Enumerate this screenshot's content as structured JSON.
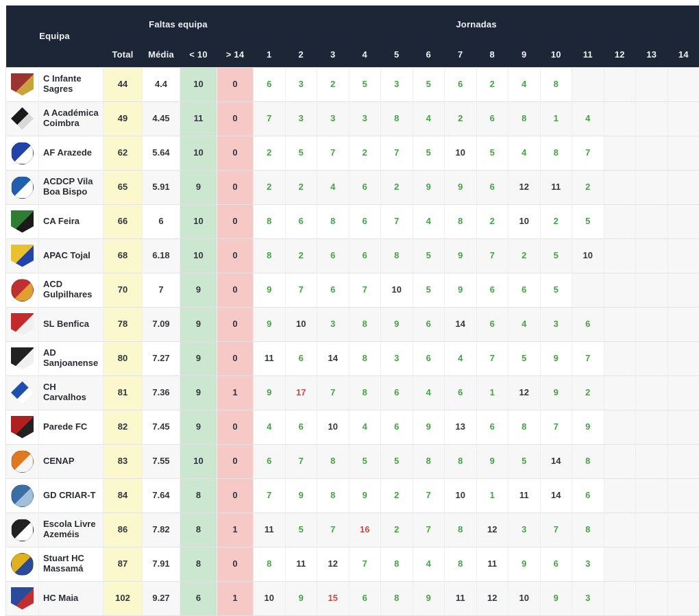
{
  "table": {
    "header": {
      "equipa": "Equipa",
      "faltas_group": "Faltas equipa",
      "jornadas_group": "Jornadas",
      "total": "Total",
      "media": "Média",
      "under": "< 10",
      "over": "> 14",
      "jornada_numbers": [
        "1",
        "2",
        "3",
        "4",
        "5",
        "6",
        "7",
        "8",
        "9",
        "10",
        "11",
        "12",
        "13",
        "14"
      ]
    },
    "colors": {
      "header_bg": "#1d2636",
      "total_col_bg": "#fbf8cd",
      "under_col_bg": "#cbe7cf",
      "over_col_bg": "#f6c9c7",
      "value_green": "#46a346",
      "value_dark": "#33363a",
      "value_red": "#cb4b47"
    },
    "rows": [
      {
        "team": "C Infante Sagres",
        "logo_shape": "shield",
        "logo_colors": [
          "#9c3434",
          "#c9a23a"
        ],
        "total": "44",
        "media": "4.4",
        "under10": "10",
        "over14": "0",
        "jornadas": [
          6,
          3,
          2,
          5,
          3,
          5,
          6,
          2,
          4,
          8,
          null,
          null,
          null,
          null
        ]
      },
      {
        "team": "A Académica Coimbra",
        "logo_shape": "diamond",
        "logo_colors": [
          "#1a1a1a",
          "#d8d8d8"
        ],
        "total": "49",
        "media": "4.45",
        "under10": "11",
        "over14": "0",
        "jornadas": [
          7,
          3,
          3,
          3,
          8,
          4,
          2,
          6,
          8,
          1,
          4,
          null,
          null,
          null
        ]
      },
      {
        "team": "AF Arazede",
        "logo_shape": "circle",
        "logo_colors": [
          "#2244aa",
          "#ffffff"
        ],
        "total": "62",
        "media": "5.64",
        "under10": "10",
        "over14": "0",
        "jornadas": [
          2,
          5,
          7,
          2,
          7,
          5,
          10,
          5,
          4,
          8,
          7,
          null,
          null,
          null
        ]
      },
      {
        "team": "ACDCP Vila Boa Bispo",
        "logo_shape": "circle",
        "logo_colors": [
          "#1f5fae",
          "#ffffff"
        ],
        "total": "65",
        "media": "5.91",
        "under10": "9",
        "over14": "0",
        "jornadas": [
          2,
          2,
          4,
          6,
          2,
          9,
          9,
          6,
          12,
          11,
          2,
          null,
          null,
          null
        ]
      },
      {
        "team": "CA Feira",
        "logo_shape": "shield",
        "logo_colors": [
          "#2e7d32",
          "#1a1a1a"
        ],
        "total": "66",
        "media": "6",
        "under10": "10",
        "over14": "0",
        "jornadas": [
          8,
          6,
          8,
          6,
          7,
          4,
          8,
          2,
          10,
          2,
          5,
          null,
          null,
          null
        ]
      },
      {
        "team": "APAC Tojal",
        "logo_shape": "shield",
        "logo_colors": [
          "#e8c030",
          "#2244aa"
        ],
        "total": "68",
        "media": "6.18",
        "under10": "10",
        "over14": "0",
        "jornadas": [
          8,
          2,
          6,
          6,
          8,
          5,
          9,
          7,
          2,
          5,
          10,
          null,
          null,
          null
        ]
      },
      {
        "team": "ACD Gulpilhares",
        "logo_shape": "circle",
        "logo_colors": [
          "#c03030",
          "#e0a030"
        ],
        "total": "70",
        "media": "7",
        "under10": "9",
        "over14": "0",
        "jornadas": [
          9,
          7,
          6,
          7,
          10,
          5,
          9,
          6,
          6,
          5,
          null,
          null,
          null,
          null
        ]
      },
      {
        "team": "SL Benfica",
        "logo_shape": "shield",
        "logo_colors": [
          "#c22b2b",
          "#f0f0f0"
        ],
        "total": "78",
        "media": "7.09",
        "under10": "9",
        "over14": "0",
        "jornadas": [
          9,
          10,
          3,
          8,
          9,
          6,
          14,
          6,
          4,
          3,
          6,
          null,
          null,
          null
        ]
      },
      {
        "team": "AD Sanjoanense",
        "logo_shape": "shield",
        "logo_colors": [
          "#222222",
          "#f0f0f0"
        ],
        "total": "80",
        "media": "7.27",
        "under10": "9",
        "over14": "0",
        "jornadas": [
          11,
          6,
          14,
          8,
          3,
          6,
          4,
          7,
          5,
          9,
          7,
          null,
          null,
          null
        ]
      },
      {
        "team": "CH Carvalhos",
        "logo_shape": "diamond",
        "logo_colors": [
          "#1f4fae",
          "#ffffff"
        ],
        "total": "81",
        "media": "7.36",
        "under10": "9",
        "over14": "1",
        "jornadas": [
          9,
          17,
          7,
          8,
          6,
          4,
          6,
          1,
          12,
          9,
          2,
          null,
          null,
          null
        ]
      },
      {
        "team": "Parede FC",
        "logo_shape": "shield",
        "logo_colors": [
          "#b02020",
          "#222222"
        ],
        "total": "82",
        "media": "7.45",
        "under10": "9",
        "over14": "0",
        "jornadas": [
          4,
          6,
          10,
          4,
          6,
          9,
          13,
          6,
          8,
          7,
          9,
          null,
          null,
          null
        ]
      },
      {
        "team": "CENAP",
        "logo_shape": "circle",
        "logo_colors": [
          "#e07820",
          "#f5f5f5"
        ],
        "total": "83",
        "media": "7.55",
        "under10": "10",
        "over14": "0",
        "jornadas": [
          6,
          7,
          8,
          5,
          5,
          8,
          8,
          9,
          5,
          14,
          8,
          null,
          null,
          null
        ]
      },
      {
        "team": "GD CRIAR-T",
        "logo_shape": "circle",
        "logo_colors": [
          "#3a6ea5",
          "#9fc0d8"
        ],
        "total": "84",
        "media": "7.64",
        "under10": "8",
        "over14": "0",
        "jornadas": [
          7,
          9,
          8,
          9,
          2,
          7,
          10,
          1,
          11,
          14,
          6,
          null,
          null,
          null
        ]
      },
      {
        "team": "Escola Livre Azeméis",
        "logo_shape": "circle",
        "logo_colors": [
          "#222222",
          "#ffffff"
        ],
        "total": "86",
        "media": "7.82",
        "under10": "8",
        "over14": "1",
        "jornadas": [
          11,
          5,
          7,
          16,
          2,
          7,
          8,
          12,
          3,
          7,
          8,
          null,
          null,
          null
        ]
      },
      {
        "team": "Stuart HC Massamá",
        "logo_shape": "circle",
        "logo_colors": [
          "#e0b020",
          "#2a4a9a"
        ],
        "total": "87",
        "media": "7.91",
        "under10": "8",
        "over14": "0",
        "jornadas": [
          8,
          11,
          12,
          7,
          8,
          4,
          8,
          11,
          9,
          6,
          3,
          null,
          null,
          null
        ]
      },
      {
        "team": "HC Maia",
        "logo_shape": "shield",
        "logo_colors": [
          "#2a4a9a",
          "#c03030"
        ],
        "total": "102",
        "media": "9.27",
        "under10": "6",
        "over14": "1",
        "jornadas": [
          10,
          9,
          15,
          6,
          8,
          9,
          11,
          12,
          10,
          9,
          3,
          null,
          null,
          null
        ]
      }
    ]
  }
}
